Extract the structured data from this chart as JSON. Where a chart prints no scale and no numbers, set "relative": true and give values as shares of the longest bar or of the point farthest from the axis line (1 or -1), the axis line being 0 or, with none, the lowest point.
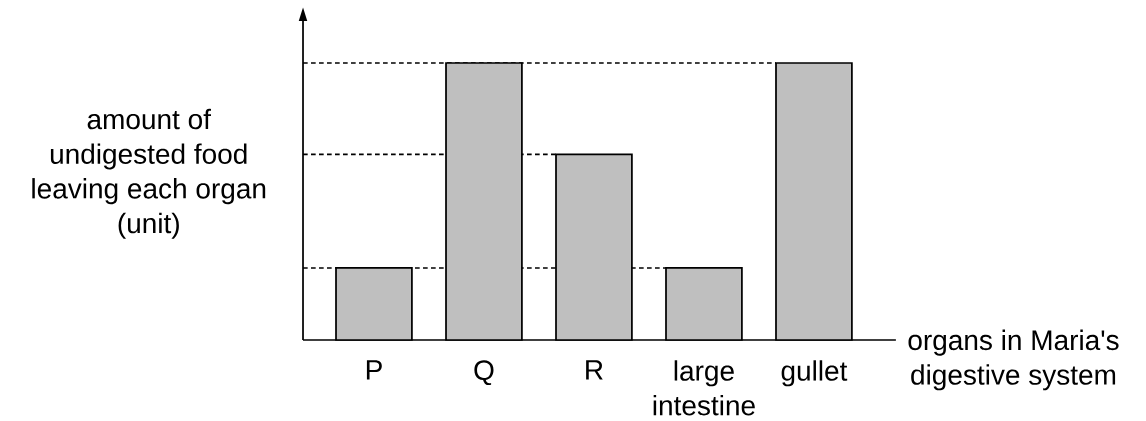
{
  "chart_data": {
    "type": "bar",
    "relative": true,
    "xlabel": "organs in Maria's digestive system",
    "ylabel": "amount of undigested food leaving each organ (unit)",
    "categories": [
      "P",
      "Q",
      "R",
      "large intestine",
      "gullet"
    ],
    "values": [
      0.26,
      1,
      0.67,
      0.26,
      1
    ],
    "color": "#bfbfbf",
    "ref_lines": [
      {
        "axis": "y",
        "value": 1,
        "line_style": "dashed",
        "color": "#000000"
      },
      {
        "axis": "y",
        "value": 0.67,
        "line_style": "dashed",
        "color": "#000000"
      },
      {
        "axis": "y",
        "value": 0.26,
        "line_style": "dashed",
        "color": "#000000"
      }
    ]
  }
}
